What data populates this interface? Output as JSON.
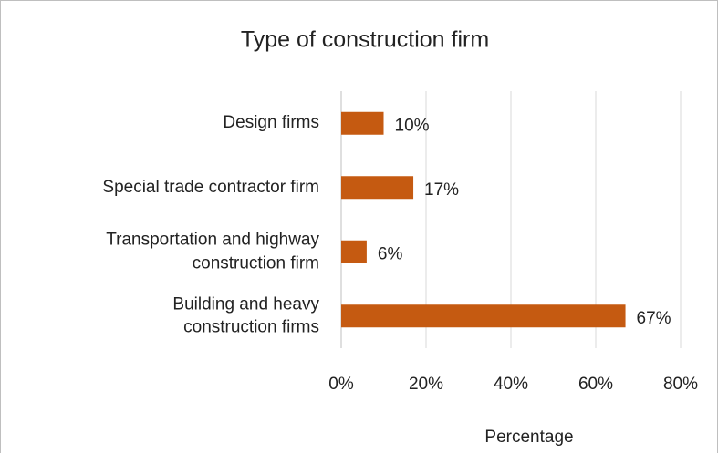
{
  "chart_data": {
    "type": "bar",
    "orientation": "horizontal",
    "title": "Type of construction firm",
    "x_label": "Percentage",
    "categories": [
      "Design firms",
      "Special trade contractor firm",
      "Transportation and highway\nconstruction firm",
      "Building and heavy\nconstruction firms"
    ],
    "values": [
      10,
      17,
      6,
      67
    ],
    "value_labels": [
      "10%",
      "17%",
      "6%",
      "67%"
    ],
    "color": "#c55a11",
    "xlim": [
      0,
      80
    ],
    "xticks": [
      {
        "value": 0,
        "label": "0%"
      },
      {
        "value": 20,
        "label": "20%"
      },
      {
        "value": 40,
        "label": "40%"
      },
      {
        "value": 60,
        "label": "60%"
      },
      {
        "value": 80,
        "label": "80%"
      }
    ],
    "grid": true
  }
}
